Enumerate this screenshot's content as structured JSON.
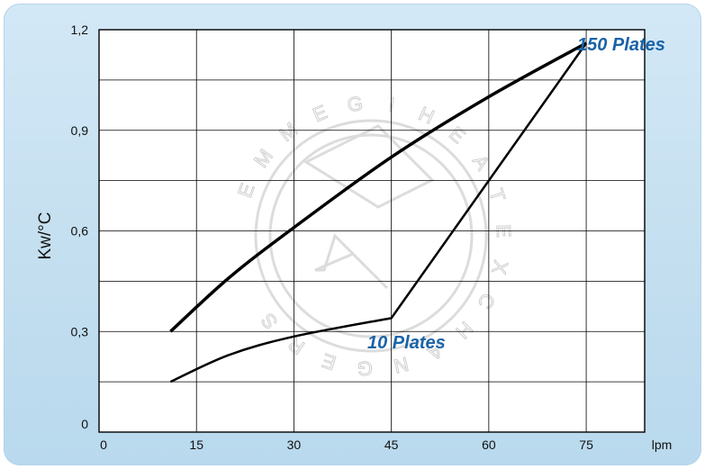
{
  "chart_data": {
    "type": "line",
    "xlabel": "lpm",
    "ylabel": "Kw/°C",
    "xlim": [
      0,
      84
    ],
    "ylim": [
      0,
      1.2
    ],
    "x_ticks": [
      0,
      15,
      30,
      45,
      60,
      75
    ],
    "x_tick_labels": [
      "0",
      "15",
      "30",
      "45",
      "60",
      "75"
    ],
    "y_ticks": [
      0,
      0.3,
      0.6,
      0.9,
      1.2
    ],
    "y_tick_labels": [
      "0",
      "0,3",
      "0,6",
      "0,9",
      "1,2"
    ],
    "grid": true,
    "series": [
      {
        "name": "150 Plates",
        "x": [
          11,
          20,
          30,
          45,
          60,
          75
        ],
        "y": [
          0.3,
          0.46,
          0.61,
          0.82,
          1.0,
          1.16
        ]
      },
      {
        "name": "10 Plates",
        "x": [
          11,
          20,
          30,
          45,
          60,
          75
        ],
        "y": [
          0.15,
          0.23,
          0.285,
          0.34,
          0.75,
          1.16
        ]
      }
    ],
    "watermark": "EMMEGI HEAT EXCHANGERS"
  },
  "colors": {
    "panel_background": "#c8e1f2",
    "plot_background": "#ffffff",
    "line": "#000000",
    "series_label": "#1a63a8"
  }
}
